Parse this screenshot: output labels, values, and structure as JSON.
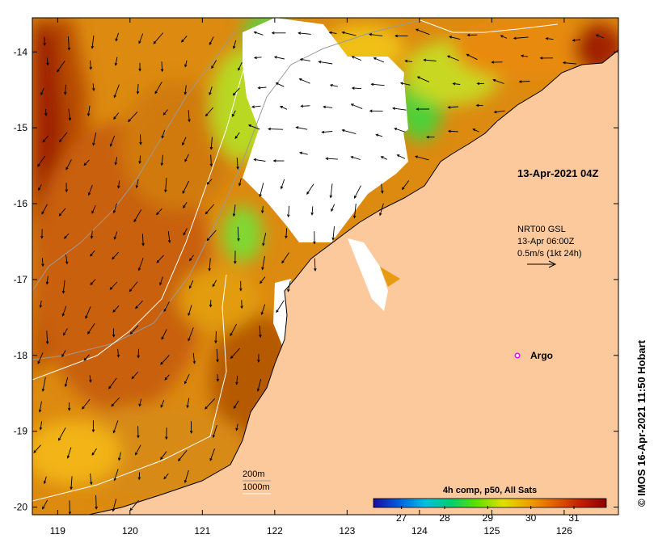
{
  "map": {
    "lon_range": [
      118.65,
      126.75
    ],
    "lat_range": [
      -20.1,
      -13.55
    ],
    "lon_ticks": [
      "119",
      "120",
      "121",
      "122",
      "123",
      "124",
      "125",
      "126"
    ],
    "lat_ticks": [
      "-14",
      "-15",
      "-16",
      "-17",
      "-18",
      "-19",
      "-20"
    ],
    "colors": {
      "land": "#fcc99c",
      "cloud": "#ffffff",
      "sst_warm": "#c45a00",
      "sst_mid": "#e89a10",
      "sst_cool": "#7fd12a",
      "sst_hot": "#a01c00"
    }
  },
  "annotations": {
    "date_label": "13-Apr-2021 04Z",
    "current_line1": "NRT00 GSL",
    "current_line2": "13-Apr 06:00Z",
    "current_line3": "0.5m/s (1kt 24h)",
    "argo_label": "Argo",
    "depth_200": "200m",
    "depth_1000": "1000m",
    "credit": "© IMOS 16-Apr-2021 11:50 Hobart"
  },
  "colorbar": {
    "title": "4h comp, p50, All Sats",
    "ticks": [
      "27",
      "28",
      "29",
      "30",
      "31"
    ],
    "colors": [
      "#1a0aa0",
      "#0060e0",
      "#00c0e0",
      "#00d070",
      "#60e000",
      "#e0e000",
      "#f0a000",
      "#e06000",
      "#c02000",
      "#8b0000"
    ]
  }
}
